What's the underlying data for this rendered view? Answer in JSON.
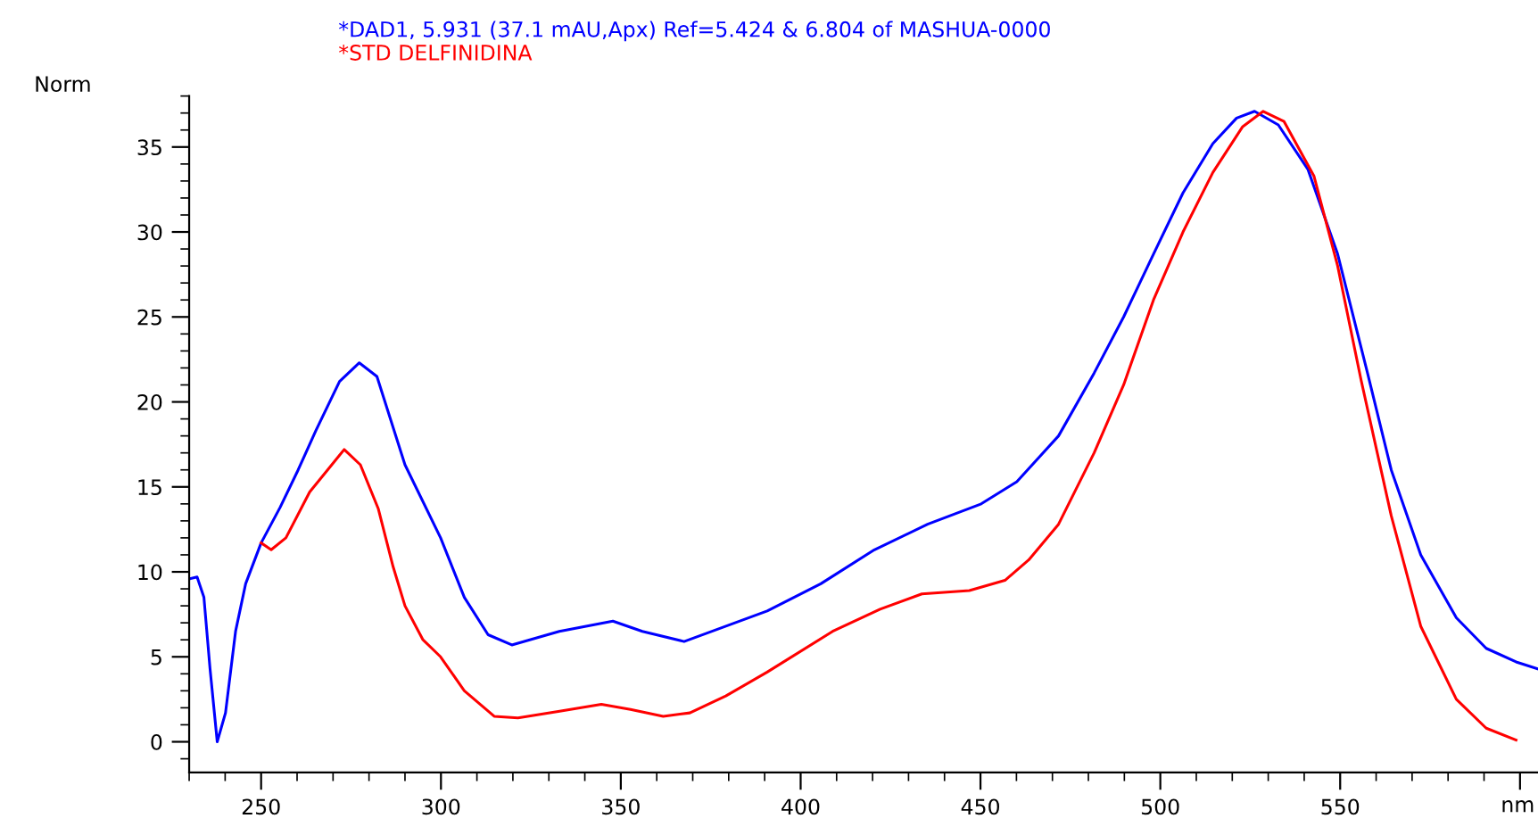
{
  "chart_data": {
    "type": "line",
    "xlabel": "nm",
    "ylabel": "Norm",
    "xlim": [
      230,
      605
    ],
    "ylim": [
      -1.8,
      38
    ],
    "xticks": [
      250,
      300,
      350,
      400,
      450,
      500,
      550,
      {
        "value": 600,
        "label": null
      }
    ],
    "yticks": [
      0,
      5,
      10,
      15,
      20,
      25,
      30,
      35
    ],
    "grid": false,
    "marker": "none",
    "line_style": "solid",
    "series": [
      {
        "name": "*DAD1, 5.931 (37.1 mAU,Apx) Ref=5.424 & 6.804 of MASHUA-0000",
        "color": "#0000ff",
        "x": [
          230.2,
          232.2,
          234.1,
          235.8,
          237.8,
          240.1,
          242.9,
          245.7,
          250,
          255.3,
          260.3,
          265.2,
          271.8,
          277.3,
          282.2,
          290,
          299.9,
          306.5,
          313.1,
          319.7,
          332.9,
          347.8,
          356,
          367.6,
          390.7,
          405.6,
          420.5,
          435.3,
          450.2,
          460.1,
          471.7,
          481.6,
          489.8,
          498.1,
          506.3,
          514.6,
          521.2,
          526.2,
          532.8,
          541,
          549.3,
          557.6,
          564.2,
          572.4,
          582.3,
          590.6,
          598.9,
          604.8
        ],
        "values": [
          9.6,
          9.7,
          8.5,
          4.3,
          0,
          1.7,
          6.5,
          9.3,
          11.7,
          13.8,
          16,
          18.3,
          21.2,
          22.3,
          21.5,
          16.3,
          12,
          8.5,
          6.3,
          5.7,
          6.5,
          7.1,
          6.5,
          5.9,
          7.7,
          9.3,
          11.3,
          12.8,
          14,
          15.3,
          18,
          21.7,
          25,
          28.7,
          32.3,
          35.2,
          36.7,
          37.1,
          36.3,
          33.7,
          28.7,
          21.7,
          16,
          11,
          7.3,
          5.5,
          4.7,
          4.3
        ]
      },
      {
        "name": "*STD DELFINIDINA",
        "color": "#ff0000",
        "x": [
          250,
          252.8,
          256.9,
          263.5,
          273.1,
          277.6,
          282.6,
          286.7,
          290,
          295,
          299.9,
          306.5,
          314.8,
          321.4,
          333,
          344.6,
          352.7,
          361.8,
          369.2,
          379.2,
          390.7,
          408.9,
          422.1,
          433.7,
          446.9,
          456.8,
          463.4,
          471.7,
          481.6,
          489.8,
          498.1,
          506.3,
          514.6,
          522.9,
          528.6,
          534.4,
          542.7,
          549.3,
          555.8,
          564.2,
          572.4,
          582.3,
          590.6,
          598.9
        ],
        "values": [
          11.7,
          11.3,
          12,
          14.7,
          17.2,
          16.3,
          13.7,
          10.3,
          8,
          6,
          5,
          3,
          1.5,
          1.4,
          1.8,
          2.2,
          1.9,
          1.5,
          1.7,
          2.7,
          4.1,
          6.5,
          7.8,
          8.7,
          8.9,
          9.5,
          10.7,
          12.8,
          17,
          21,
          26,
          30,
          33.5,
          36.2,
          37.1,
          36.5,
          33.3,
          28,
          21.3,
          13.3,
          6.8,
          2.5,
          0.8,
          0.1
        ]
      }
    ]
  }
}
